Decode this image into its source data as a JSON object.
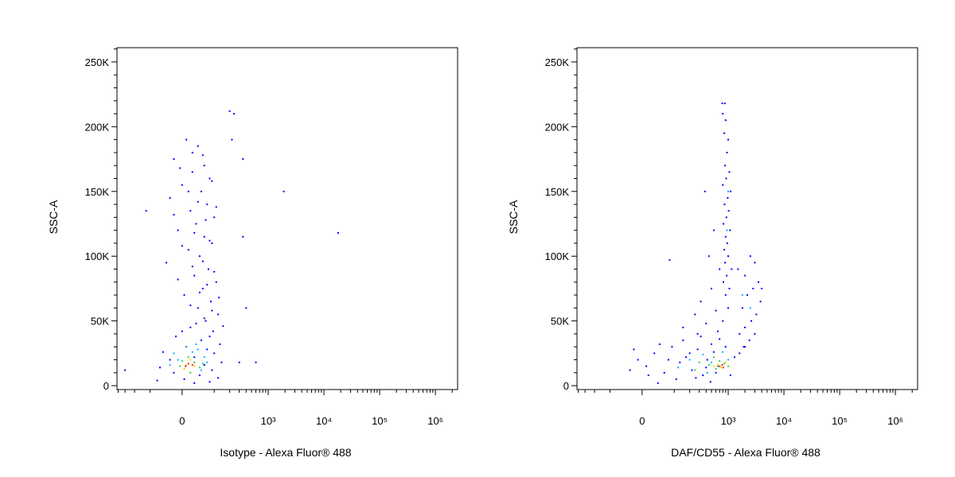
{
  "chart_data": [
    {
      "type": "scatter",
      "xlabel": "Isotype - Alexa Fluor® 488",
      "ylabel": "SSC-A",
      "xscale": "biexponential",
      "xlim": [
        -420,
        2500000
      ],
      "ylim": [
        -3000,
        261000
      ],
      "xticks": [
        0,
        {
          "value": 1000,
          "label": "10³"
        },
        {
          "value": 10000,
          "label": "10⁴"
        },
        {
          "value": 100000,
          "label": "10⁵"
        },
        {
          "value": 1000000,
          "label": "10⁶"
        }
      ],
      "xminorticks": [
        -400,
        -300,
        -200,
        -100,
        100,
        200,
        300,
        400,
        500,
        600,
        700,
        800,
        900,
        2000,
        3000,
        4000,
        5000,
        6000,
        7000,
        8000,
        9000,
        20000,
        30000,
        40000,
        50000,
        60000,
        70000,
        80000,
        90000,
        200000,
        300000,
        400000,
        500000,
        600000,
        700000,
        800000,
        900000,
        2000000
      ],
      "yticks": [
        0,
        {
          "value": 50000,
          "label": "50K"
        },
        {
          "value": 100000,
          "label": "100K"
        },
        {
          "value": 150000,
          "label": "150K"
        },
        {
          "value": 200000,
          "label": "200K"
        },
        {
          "value": 250000,
          "label": "250K"
        }
      ],
      "yminorticks": [
        10000,
        20000,
        30000,
        40000,
        60000,
        70000,
        80000,
        90000,
        110000,
        120000,
        130000,
        140000,
        160000,
        170000,
        180000,
        190000,
        210000,
        220000,
        230000,
        240000,
        260000
      ],
      "series": [
        {
          "color": "#0000ff",
          "x": [
            10,
            40,
            -20,
            60,
            25,
            80,
            0,
            50,
            -30,
            70,
            20,
            100,
            35,
            -10,
            60,
            90,
            15,
            45,
            -40,
            75,
            30,
            110,
            55,
            5,
            85,
            40,
            120,
            65,
            20,
            95,
            -15,
            50,
            130,
            10,
            70,
            -50,
            100,
            30,
            -30,
            140,
            60,
            -60,
            90,
            -20,
            45,
            120,
            5,
            -70,
            80,
            30,
            25,
            55,
            -5,
            90,
            15,
            40,
            110,
            -20,
            65,
            30,
            80,
            0,
            55,
            25,
            100,
            -10,
            70,
            45,
            125,
            20,
            90,
            60,
            35,
            150,
            0,
            80,
            200,
            240,
            350,
            220,
            1900,
            18000,
            350,
            -120,
            400,
            600,
            300,
            -300
          ],
          "y": [
            190000,
            185000,
            175000,
            170000,
            165000,
            160000,
            155000,
            150000,
            145000,
            140000,
            135000,
            130000,
            125000,
            120000,
            115000,
            110000,
            105000,
            100000,
            95000,
            90000,
            85000,
            80000,
            75000,
            70000,
            65000,
            60000,
            55000,
            50000,
            45000,
            42000,
            38000,
            35000,
            32000,
            30000,
            28000,
            26000,
            25000,
            22000,
            20000,
            18000,
            16000,
            14000,
            12000,
            10000,
            8000,
            6000,
            5000,
            4000,
            3000,
            2000,
            180000,
            178000,
            168000,
            158000,
            150000,
            142000,
            138000,
            132000,
            128000,
            118000,
            112000,
            108000,
            96000,
            92000,
            88000,
            82000,
            78000,
            72000,
            68000,
            62000,
            58000,
            52000,
            48000,
            46000,
            42000,
            38000,
            212000,
            210000,
            175000,
            190000,
            150000,
            118000,
            115000,
            135000,
            60000,
            18000,
            18000,
            12000
          ]
        },
        {
          "color": "#00b4ff",
          "x": [
            10,
            40,
            -20,
            60,
            25,
            -10,
            70,
            50,
            -30,
            35
          ],
          "y": [
            30000,
            28000,
            25000,
            22000,
            26000,
            20000,
            18000,
            12000,
            16000,
            32000
          ]
        },
        {
          "color": "#30d040",
          "x": [
            15,
            30,
            -5,
            45,
            20,
            0,
            55
          ],
          "y": [
            22000,
            18000,
            15000,
            14000,
            10000,
            19000,
            17000
          ]
        },
        {
          "color": "#ffd000",
          "x": [
            10,
            30,
            20,
            5
          ],
          "y": [
            16000,
            15000,
            20000,
            13000
          ]
        },
        {
          "color": "#ff2000",
          "x": [
            15,
            25,
            8
          ],
          "y": [
            17000,
            16000,
            15000
          ]
        }
      ]
    },
    {
      "type": "scatter",
      "xlabel": "DAF/CD55 - Alexa Fluor® 488",
      "ylabel": "SSC-A",
      "xscale": "biexponential",
      "xlim": [
        -420,
        2500000
      ],
      "ylim": [
        -3000,
        261000
      ],
      "xticks": [
        0,
        {
          "value": 1000,
          "label": "10³"
        },
        {
          "value": 10000,
          "label": "10⁴"
        },
        {
          "value": 100000,
          "label": "10⁵"
        },
        {
          "value": 1000000,
          "label": "10⁶"
        }
      ],
      "xminorticks": [
        -400,
        -300,
        -200,
        -100,
        100,
        200,
        300,
        400,
        500,
        600,
        700,
        800,
        900,
        2000,
        3000,
        4000,
        5000,
        6000,
        7000,
        8000,
        9000,
        20000,
        30000,
        40000,
        50000,
        60000,
        70000,
        80000,
        90000,
        200000,
        300000,
        400000,
        500000,
        600000,
        700000,
        800000,
        900000,
        2000000
      ],
      "yticks": [
        0,
        {
          "value": 50000,
          "label": "50K"
        },
        {
          "value": 100000,
          "label": "100K"
        },
        {
          "value": 150000,
          "label": "150K"
        },
        {
          "value": 200000,
          "label": "200K"
        },
        {
          "value": 250000,
          "label": "250K"
        }
      ],
      "yminorticks": [
        10000,
        20000,
        30000,
        40000,
        60000,
        70000,
        80000,
        90000,
        110000,
        120000,
        130000,
        140000,
        160000,
        170000,
        180000,
        190000,
        210000,
        220000,
        230000,
        240000,
        260000
      ],
      "series": [
        {
          "color": "#0000ff",
          "x": [
            -10,
            10,
            30,
            60,
            90,
            130,
            170,
            220,
            280,
            350,
            420,
            500,
            600,
            -20,
            15,
            45,
            75,
            110,
            150,
            200,
            260,
            320,
            400,
            480,
            550,
            700,
            900,
            1100,
            1300,
            1600,
            2000,
            -30,
            40,
            150,
            250,
            400,
            320,
            500,
            600,
            700,
            450,
            550,
            380,
            80,
            650,
            800,
            280,
            800,
            900,
            850,
            1000,
            950,
            880,
            1050,
            920,
            800,
            1100,
            980,
            860,
            1020,
            930,
            820,
            1080,
            900,
            960,
            850,
            1000,
            880,
            1150,
            940,
            820,
            1050,
            900,
            1000,
            870,
            780,
            1500,
            2000,
            2500,
            3000,
            3500,
            2800,
            2200,
            3800,
            1800,
            3200,
            2600,
            2000,
            3000,
            2400,
            1900,
            4000,
            1600
          ],
          "y": [
            20000,
            15000,
            25000,
            10000,
            30000,
            18000,
            22000,
            12000,
            28000,
            8000,
            20000,
            32000,
            10000,
            28000,
            8000,
            32000,
            20000,
            5000,
            35000,
            25000,
            6000,
            38000,
            14000,
            3000,
            26000,
            36000,
            30000,
            8000,
            22000,
            25000,
            30000,
            12000,
            2000,
            45000,
            55000,
            48000,
            65000,
            75000,
            58000,
            90000,
            100000,
            120000,
            150000,
            97000,
            42000,
            50000,
            40000,
            210000,
            205000,
            195000,
            190000,
            180000,
            170000,
            165000,
            160000,
            155000,
            150000,
            145000,
            140000,
            135000,
            130000,
            125000,
            120000,
            115000,
            110000,
            105000,
            100000,
            95000,
            90000,
            85000,
            80000,
            75000,
            70000,
            60000,
            218000,
            218000,
            90000,
            85000,
            100000,
            95000,
            80000,
            75000,
            70000,
            65000,
            60000,
            55000,
            50000,
            45000,
            40000,
            35000,
            30000,
            75000,
            40000
          ]
        },
        {
          "color": "#00b4ff",
          "x": [
            1000,
            950,
            1800,
            2500,
            200,
            350,
            500,
            650,
            120,
            800,
            1000,
            420
          ],
          "y": [
            150000,
            120000,
            70000,
            60000,
            20000,
            24000,
            18000,
            15000,
            14000,
            26000,
            20000,
            10000
          ]
        },
        {
          "color": "#30d040",
          "x": [
            300,
            450,
            550,
            700,
            850,
            250,
            600,
            1000
          ],
          "y": [
            18000,
            16000,
            22000,
            19000,
            17000,
            12000,
            13000,
            15000
          ]
        },
        {
          "color": "#ffd000",
          "x": [
            650,
            750,
            900,
            550
          ],
          "y": [
            16000,
            14000,
            18000,
            15000
          ]
        },
        {
          "color": "#ff2000",
          "x": [
            700,
            780,
            820
          ],
          "y": [
            15000,
            16000,
            14000
          ]
        }
      ]
    }
  ]
}
